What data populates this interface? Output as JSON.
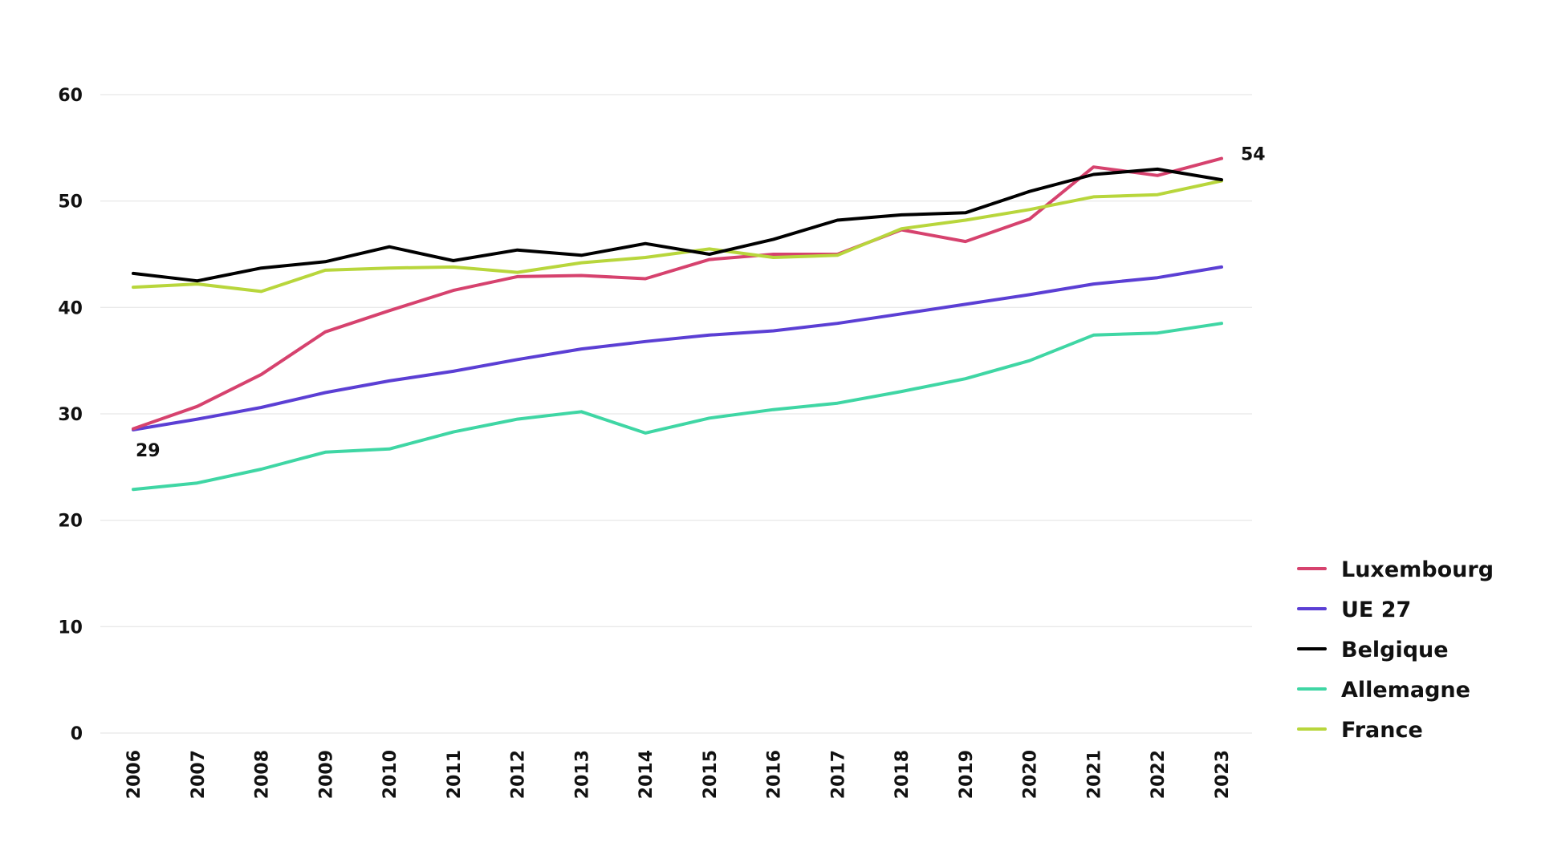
{
  "chart_data": {
    "type": "line",
    "title": "",
    "xlabel": "",
    "ylabel": "",
    "ylim": [
      0,
      60
    ],
    "yticks": [
      0,
      10,
      20,
      30,
      40,
      50,
      60
    ],
    "grid": true,
    "legend_position": "right",
    "categories": [
      "2006",
      "2007",
      "2008",
      "2009",
      "2010",
      "2011",
      "2012",
      "2013",
      "2014",
      "2015",
      "2016",
      "2017",
      "2018",
      "2019",
      "2020",
      "2021",
      "2022",
      "2023"
    ],
    "series": [
      {
        "name": "Luxembourg",
        "color": "#d6426e",
        "values": [
          28.6,
          30.7,
          33.7,
          37.7,
          39.7,
          41.6,
          42.9,
          43.0,
          42.7,
          44.5,
          45.0,
          45.0,
          47.3,
          46.2,
          48.3,
          53.2,
          52.4,
          54.0
        ]
      },
      {
        "name": "UE 27",
        "color": "#5b3fd4",
        "values": [
          28.5,
          29.5,
          30.6,
          32.0,
          33.1,
          34.0,
          35.1,
          36.1,
          36.8,
          37.4,
          37.8,
          38.5,
          39.4,
          40.3,
          41.2,
          42.2,
          42.8,
          43.8
        ]
      },
      {
        "name": "Belgique",
        "color": "#000000",
        "values": [
          43.2,
          42.5,
          43.7,
          44.3,
          45.7,
          44.4,
          45.4,
          44.9,
          46.0,
          45.0,
          46.4,
          48.2,
          48.7,
          48.9,
          50.9,
          52.5,
          53.0,
          52.0
        ]
      },
      {
        "name": "Allemagne",
        "color": "#3fd6a4",
        "values": [
          22.9,
          23.5,
          24.8,
          26.4,
          26.7,
          28.3,
          29.5,
          30.2,
          28.2,
          29.6,
          30.4,
          31.0,
          32.1,
          33.3,
          35.0,
          37.4,
          37.6,
          38.5
        ]
      },
      {
        "name": "France",
        "color": "#b8d63c",
        "values": [
          41.9,
          42.2,
          41.5,
          43.5,
          43.7,
          43.8,
          43.3,
          44.2,
          44.7,
          45.5,
          44.7,
          44.9,
          47.4,
          48.2,
          49.2,
          50.4,
          50.6,
          51.9
        ]
      }
    ],
    "annotations": [
      {
        "text": "29",
        "series": "UE 27",
        "category": "2006",
        "value": 28.5
      },
      {
        "text": "54",
        "series": "Luxembourg",
        "category": "2023",
        "value": 54.0
      }
    ]
  }
}
